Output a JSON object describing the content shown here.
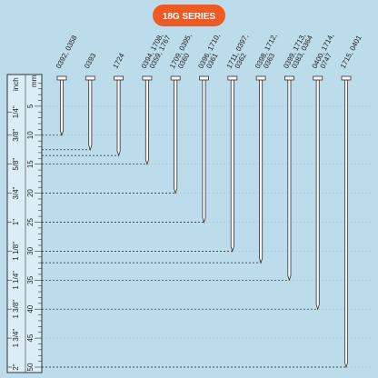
{
  "title": "18G SERIES",
  "ruler": {
    "mm_label": "mm",
    "inch_label": "inch",
    "mm_ticks": [
      5,
      10,
      15,
      20,
      25,
      30,
      35,
      40,
      45,
      50
    ],
    "inch_ticks": [
      {
        "value": 6,
        "label": "1/4\""
      },
      {
        "value": 10,
        "label": "3/8\""
      },
      {
        "value": 15,
        "label": "5/8\""
      },
      {
        "value": 20,
        "label": "3/4\""
      },
      {
        "value": 25,
        "label": "1\""
      },
      {
        "value": 30,
        "label": "1 1/8\""
      },
      {
        "value": 35,
        "label": "1 1/4\""
      },
      {
        "value": 40,
        "label": "1 3/8\""
      },
      {
        "value": 45,
        "label": "1 3/4\""
      },
      {
        "value": 50,
        "label": "2\""
      }
    ]
  },
  "nails": [
    {
      "lines": [
        "0392, 0358"
      ],
      "length": 10
    },
    {
      "lines": [
        "0393"
      ],
      "length": 12.5
    },
    {
      "lines": [
        "1724"
      ],
      "length": 13.5
    },
    {
      "lines": [
        "0394, 1708,",
        "0359, 1767"
      ],
      "length": 15
    },
    {
      "lines": [
        "1709, 0395,",
        "0360"
      ],
      "length": 20
    },
    {
      "lines": [
        "0396, 1710,",
        "0361"
      ],
      "length": 25
    },
    {
      "lines": [
        "1711, 0397,",
        "0362"
      ],
      "length": 30
    },
    {
      "lines": [
        "0398, 1712,",
        "0363"
      ],
      "length": 32
    },
    {
      "lines": [
        "0399, 1713,",
        "0383, 0364"
      ],
      "length": 35
    },
    {
      "lines": [
        "0400, 1714,",
        "0747"
      ],
      "length": 40
    },
    {
      "lines": [
        "1715, 0401"
      ],
      "length": 50
    }
  ]
}
